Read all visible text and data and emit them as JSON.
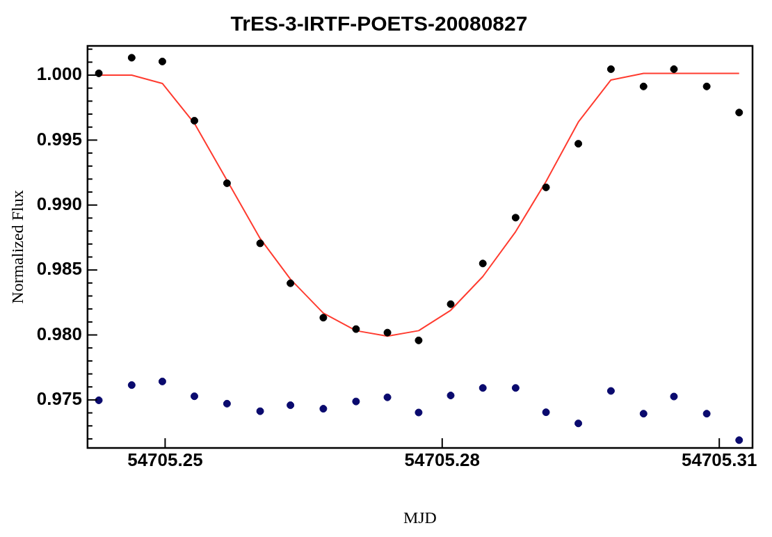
{
  "chart_data": {
    "type": "scatter",
    "title": "TrES-3-IRTF-POETS-20080827",
    "xlabel": "MJD",
    "ylabel": "Normalized Flux",
    "x": [
      54705.24282,
      54705.24638,
      54705.2497,
      54705.25317,
      54705.2567,
      54705.26029,
      54705.26357,
      54705.26713,
      54705.27067,
      54705.27407,
      54705.27745,
      54705.28092,
      54705.2844,
      54705.28795,
      54705.29124,
      54705.29474,
      54705.29827,
      54705.3018,
      54705.30509,
      54705.30864,
      54705.31215
    ],
    "series": [
      {
        "color": "#000000",
        "values": [
          1.00014,
          1.00134,
          1.00105,
          0.99649,
          0.99168,
          0.98705,
          0.98398,
          0.98133,
          0.98045,
          0.98018,
          0.97958,
          0.98237,
          0.9855,
          0.98903,
          0.99136,
          0.99472,
          1.00046,
          0.99913,
          1.00046,
          0.99913,
          0.99712
        ]
      },
      {
        "color": "#0a0a6e",
        "values": [
          0.97497,
          0.97614,
          0.97642,
          0.97528,
          0.97471,
          0.97413,
          0.97459,
          0.97432,
          0.97488,
          0.9752,
          0.97403,
          0.97534,
          0.97592,
          0.97592,
          0.97405,
          0.97319,
          0.97569,
          0.97394,
          0.97526,
          0.97394,
          0.9719
        ]
      },
      {
        "type": "line",
        "marker": "none",
        "color": "#ff3b2f",
        "values": [
          1.0,
          1.0,
          0.99936,
          0.99629,
          0.9919,
          0.98742,
          0.98429,
          0.98168,
          0.98033,
          0.97991,
          0.98033,
          0.9819,
          0.9845,
          0.98795,
          0.99181,
          0.99639,
          0.99963,
          1.00014,
          1.00014,
          1.00014,
          1.00014
        ]
      }
    ],
    "xlim": [
      54705.2416,
      54705.3136
    ],
    "xticks": [
      54705.25,
      54705.28,
      54705.31
    ],
    "ylim": [
      0.9713,
      1.00225
    ],
    "yticks": [
      {
        "value": 0.972,
        "label": null
      },
      {
        "value": 0.973,
        "label": null
      },
      {
        "value": 0.974,
        "label": null
      },
      {
        "value": 0.975,
        "label": "0.975"
      },
      {
        "value": 0.976,
        "label": null
      },
      {
        "value": 0.977,
        "label": null
      },
      {
        "value": 0.978,
        "label": null
      },
      {
        "value": 0.979,
        "label": null
      },
      {
        "value": 0.98,
        "label": "0.980"
      },
      {
        "value": 0.981,
        "label": null
      },
      {
        "value": 0.982,
        "label": null
      },
      {
        "value": 0.983,
        "label": null
      },
      {
        "value": 0.984,
        "label": null
      },
      {
        "value": 0.985,
        "label": "0.985"
      },
      {
        "value": 0.986,
        "label": null
      },
      {
        "value": 0.987,
        "label": null
      },
      {
        "value": 0.988,
        "label": null
      },
      {
        "value": 0.989,
        "label": null
      },
      {
        "value": 0.99,
        "label": "0.990"
      },
      {
        "value": 0.991,
        "label": null
      },
      {
        "value": 0.992,
        "label": null
      },
      {
        "value": 0.993,
        "label": null
      },
      {
        "value": 0.994,
        "label": null
      },
      {
        "value": 0.995,
        "label": "0.995"
      },
      {
        "value": 0.996,
        "label": null
      },
      {
        "value": 0.997,
        "label": null
      },
      {
        "value": 0.998,
        "label": null
      },
      {
        "value": 0.999,
        "label": null
      },
      {
        "value": 1.0,
        "label": "1.000"
      },
      {
        "value": 1.001,
        "label": null
      },
      {
        "value": 1.002,
        "label": null
      }
    ],
    "marker": "circle",
    "line_style": "solid",
    "grid": false,
    "legend": false
  }
}
